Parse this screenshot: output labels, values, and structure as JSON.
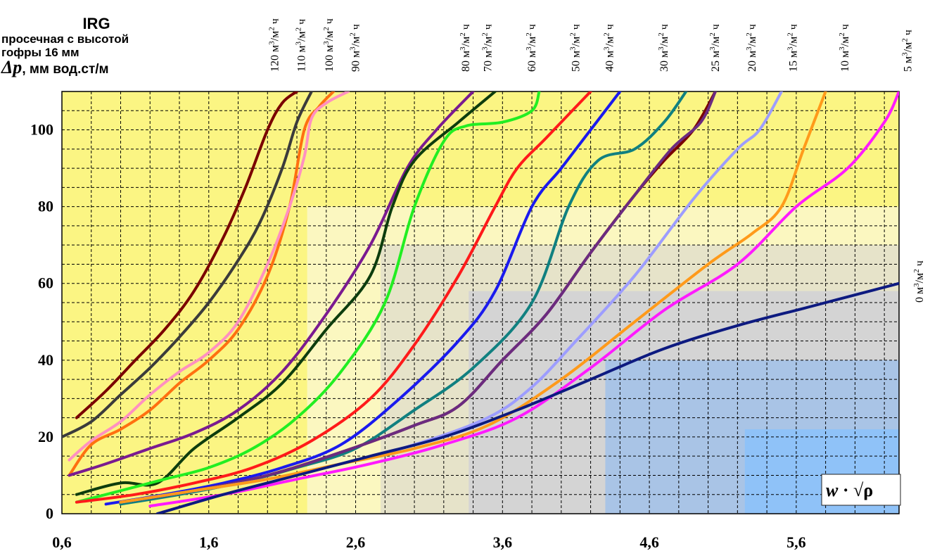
{
  "header": {
    "title": "IRG",
    "subtitle_line1": "просечная с высотой",
    "subtitle_line2": "гофры 16 мм",
    "ylabel_symbol": "Δp",
    "ylabel_unit": ", мм вод.ст/м"
  },
  "chart_data": {
    "type": "line",
    "title": "IRG просечная с высотой гофры 16 мм",
    "ylabel": "Δp, мм вод.ст/м",
    "xlabel": "w · √ρ",
    "xlim": [
      0.6,
      6.3
    ],
    "ylim": [
      0,
      110
    ],
    "grid": true,
    "x_ticks": [
      "0,6",
      "1,6",
      "2,6",
      "3,6",
      "4,6",
      "5,6"
    ],
    "x_tick_values": [
      0.6,
      1.6,
      2.6,
      3.6,
      4.6,
      5.6
    ],
    "y_ticks": [
      "0",
      "20",
      "40",
      "60",
      "80",
      "100"
    ],
    "y_tick_values": [
      0,
      20,
      40,
      60,
      80,
      100
    ],
    "background_zones": [
      {
        "x": [
          0.6,
          6.3
        ],
        "y": [
          0,
          110
        ],
        "color": "#fbf583"
      },
      {
        "x": [
          2.27,
          6.3
        ],
        "y": [
          0,
          80
        ],
        "color": "#fbf7c0"
      },
      {
        "x": [
          2.77,
          6.3
        ],
        "y": [
          0,
          70
        ],
        "color": "#e6e3c9"
      },
      {
        "x": [
          3.37,
          6.3
        ],
        "y": [
          0,
          58
        ],
        "color": "#d4d4d4"
      },
      {
        "x": [
          4.3,
          6.3
        ],
        "y": [
          0,
          40
        ],
        "color": "#a9c4e6"
      },
      {
        "x": [
          5.25,
          6.3
        ],
        "y": [
          0,
          22
        ],
        "color": "#8fc2f8"
      }
    ],
    "series": [
      {
        "name": "120 м3/м2 ч",
        "color": "#7a0000",
        "x": [
          0.7,
          0.9,
          1.1,
          1.3,
          1.5,
          1.7,
          1.85,
          2.0,
          2.1,
          2.2
        ],
        "y": [
          25,
          32,
          40,
          48,
          58,
          72,
          85,
          100,
          107,
          110
        ]
      },
      {
        "name": "110 м3/м2 ч",
        "color": "#3b3b3b",
        "x": [
          0.6,
          0.8,
          1.0,
          1.2,
          1.4,
          1.6,
          1.8,
          1.95,
          2.1,
          2.2,
          2.3
        ],
        "y": [
          20,
          24,
          31,
          38,
          46,
          55,
          66,
          76,
          90,
          102,
          110
        ]
      },
      {
        "name": "100 м3/м2 ч",
        "color": "#ff7010",
        "x": [
          0.65,
          0.8,
          1.0,
          1.2,
          1.4,
          1.6,
          1.8,
          2.0,
          2.15,
          2.25,
          2.35,
          2.45
        ],
        "y": [
          10,
          18,
          22,
          27,
          34,
          40,
          48,
          62,
          80,
          100,
          106,
          110
        ]
      },
      {
        "name": "90 м3/м2 ч",
        "color": "#ff90c0",
        "x": [
          0.65,
          0.8,
          1.0,
          1.2,
          1.4,
          1.6,
          1.8,
          2.0,
          2.15,
          2.25,
          2.3,
          2.4,
          2.55
        ],
        "y": [
          14,
          19,
          24,
          31,
          37,
          42,
          50,
          65,
          80,
          93,
          103,
          107,
          110
        ]
      },
      {
        "name": "80 м3/м2 ч",
        "color": "#7a1a90",
        "x": [
          0.65,
          0.9,
          1.2,
          1.5,
          1.8,
          2.1,
          2.4,
          2.7,
          2.95,
          3.15,
          3.4
        ],
        "y": [
          10,
          13,
          17,
          21,
          27,
          37,
          52,
          70,
          90,
          100,
          110
        ]
      },
      {
        "name": "70 м3/м2 ч",
        "color": "#0d3d0d",
        "x": [
          0.7,
          1.0,
          1.25,
          1.5,
          1.8,
          2.1,
          2.4,
          2.7,
          2.85,
          3.0,
          3.3,
          3.55
        ],
        "y": [
          5,
          8,
          8,
          17,
          25,
          34,
          48,
          62,
          80,
          92,
          102,
          110
        ]
      },
      {
        "name": "60 м3/м2 ч",
        "color": "#22ee22",
        "x": [
          0.7,
          1.0,
          1.3,
          1.6,
          1.9,
          2.2,
          2.5,
          2.8,
          3.0,
          3.2,
          3.35,
          3.6,
          3.8,
          3.85
        ],
        "y": [
          3,
          6,
          9,
          12,
          17,
          25,
          37,
          55,
          80,
          97,
          101,
          102,
          105,
          110
        ]
      },
      {
        "name": "50 м3/м2 ч",
        "color": "#ff1a1a",
        "x": [
          0.7,
          1.1,
          1.5,
          1.9,
          2.3,
          2.7,
          3.0,
          3.3,
          3.55,
          3.7,
          3.9,
          4.2
        ],
        "y": [
          3,
          5,
          8,
          12,
          19,
          30,
          44,
          62,
          80,
          90,
          98,
          110
        ]
      },
      {
        "name": "40 м3/м2 ч",
        "color": "#1a1aee",
        "x": [
          0.9,
          1.3,
          1.7,
          2.1,
          2.5,
          2.9,
          3.3,
          3.55,
          3.8,
          4.0,
          4.2,
          4.4
        ],
        "y": [
          2.5,
          5,
          8,
          12,
          18,
          30,
          45,
          58,
          80,
          90,
          100,
          110
        ]
      },
      {
        "name": "30 м3/м2 ч",
        "color": "#108080",
        "x": [
          1.0,
          1.4,
          1.8,
          2.2,
          2.6,
          3.0,
          3.4,
          3.8,
          4.05,
          4.25,
          4.5,
          4.7,
          4.85
        ],
        "y": [
          2.5,
          5,
          8,
          12,
          17,
          27,
          38,
          55,
          80,
          92,
          95,
          102,
          110
        ]
      },
      {
        "name": "25 м3/м2 ч",
        "color": "#7a0000",
        "x": [
          1.0,
          1.5,
          2.0,
          2.5,
          3.0,
          3.3,
          3.6,
          3.9,
          4.2,
          4.5,
          4.7,
          4.9,
          5.05
        ],
        "y": [
          3,
          6,
          10,
          16,
          23,
          28,
          40,
          52,
          68,
          83,
          92,
          100,
          110
        ]
      },
      {
        "name": "20 м3/м2 ч",
        "color": "#6b2b80",
        "x": [
          1.0,
          1.5,
          2.0,
          2.5,
          3.0,
          3.3,
          3.6,
          3.9,
          4.2,
          4.5,
          4.75,
          4.95,
          5.05
        ],
        "y": [
          3,
          6,
          10,
          16,
          23,
          28,
          40,
          52,
          68,
          83,
          95,
          102,
          110
        ]
      },
      {
        "name": "15 м3/м2 ч",
        "color": "#9d9dff",
        "x": [
          1.0,
          1.5,
          2.0,
          2.5,
          3.0,
          3.5,
          3.8,
          4.1,
          4.5,
          4.9,
          5.2,
          5.35,
          5.5
        ],
        "y": [
          3,
          6,
          9,
          13,
          18,
          25,
          33,
          45,
          62,
          82,
          95,
          100,
          110
        ]
      },
      {
        "name": "10 м3/м2 ч",
        "color": "#ff9a1a",
        "x": [
          1.0,
          1.5,
          2.0,
          2.5,
          3.0,
          3.5,
          4.0,
          4.5,
          5.0,
          5.3,
          5.5,
          5.65,
          5.8
        ],
        "y": [
          3,
          6,
          9,
          13,
          17,
          23,
          35,
          50,
          65,
          73,
          80,
          95,
          110
        ]
      },
      {
        "name": "5 м3/м2 ч",
        "color": "#ff1aff",
        "x": [
          1.2,
          1.7,
          2.2,
          2.7,
          3.2,
          3.7,
          4.2,
          4.7,
          5.2,
          5.6,
          5.95,
          6.2,
          6.3
        ],
        "y": [
          2,
          5,
          9,
          13,
          18,
          25,
          38,
          53,
          65,
          80,
          90,
          102,
          110
        ]
      },
      {
        "name": "0 м3/м2 ч",
        "color": "#0d1a80",
        "x": [
          1.25,
          1.7,
          2.2,
          2.7,
          3.2,
          3.7,
          4.2,
          4.7,
          5.2,
          5.7,
          6.3
        ],
        "y": [
          0,
          5,
          10,
          15,
          20,
          27,
          35,
          43,
          49,
          54,
          60
        ]
      }
    ],
    "series_labels": [
      {
        "num": "120",
        "x": 2.05,
        "text": "120 м3/м2 ч"
      },
      {
        "num": "110",
        "x": 2.23,
        "text": "110 м3/м2 ч"
      },
      {
        "num": "100",
        "x": 2.42,
        "text": "100 м3/м2 ч"
      },
      {
        "num": "90",
        "x": 2.6,
        "text": "90 м3/м2 ч"
      },
      {
        "num": "80",
        "x": 3.35,
        "text": "80 м3/м2 ч"
      },
      {
        "num": "70",
        "x": 3.5,
        "text": "70 м3/м2 ч"
      },
      {
        "num": "60",
        "x": 3.8,
        "text": "60 м3/м2 ч"
      },
      {
        "num": "50",
        "x": 4.1,
        "text": "50 м3/м2 ч"
      },
      {
        "num": "40",
        "x": 4.33,
        "text": "40 м3/м2 ч"
      },
      {
        "num": "30",
        "x": 4.7,
        "text": "30 м3/м2 ч"
      },
      {
        "num": "25",
        "x": 5.05,
        "text": "25 м3/м2 ч"
      },
      {
        "num": "20",
        "x": 5.3,
        "text": "20 м3/м2 ч"
      },
      {
        "num": "15",
        "x": 5.58,
        "text": "15 м3/м2 ч"
      },
      {
        "num": "10",
        "x": 5.93,
        "text": "10 м3/м2 ч"
      },
      {
        "num": "5",
        "x": 6.36,
        "text": "5 м3/м2 ч"
      }
    ],
    "zero_label": {
      "num": "0",
      "text": "0 м3/м2 ч",
      "y": 60
    },
    "unit_text": {
      "m": "м",
      "sup3": "3",
      "slash": "/м",
      "sup2": "2",
      "h": " ч"
    },
    "x_axis_formula": {
      "w": "w",
      "dot": " · ",
      "root": "√",
      "rho": "ρ"
    }
  }
}
